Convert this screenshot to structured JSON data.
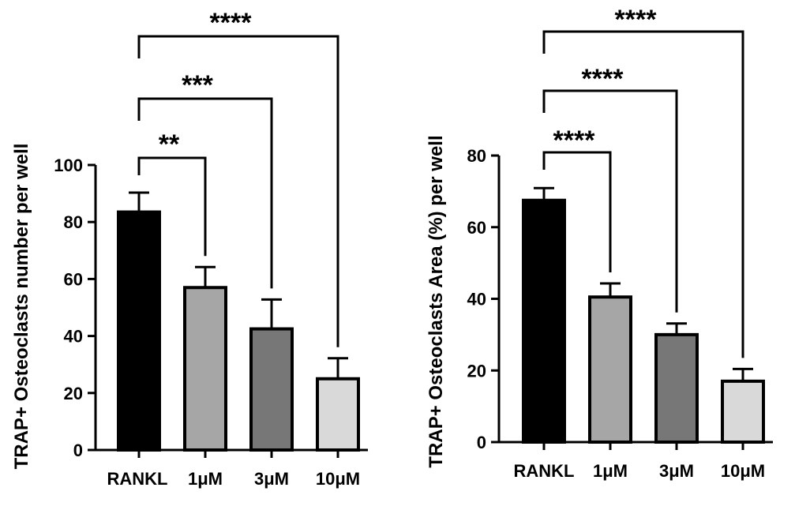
{
  "chart_data": [
    {
      "type": "bar",
      "categories": [
        "RANKL",
        "1μM",
        "3μM",
        "10μM"
      ],
      "values": [
        83.5,
        57,
        42.5,
        25
      ],
      "errors": [
        6.8,
        7.2,
        10.3,
        7.2
      ],
      "bar_colors": [
        "#000000",
        "#a6a6a6",
        "#777777",
        "#d9d9d9"
      ],
      "ylabel": "TRAP+ Osteoclasts number per well",
      "ylim": [
        0,
        100
      ],
      "yticks": [
        "0",
        "20",
        "40",
        "60",
        "80",
        "100"
      ],
      "significance": [
        {
          "from": "RANKL",
          "to": "1μM",
          "label": "**"
        },
        {
          "from": "RANKL",
          "to": "3μM",
          "label": "***"
        },
        {
          "from": "RANKL",
          "to": "10μM",
          "label": "****"
        }
      ]
    },
    {
      "type": "bar",
      "categories": [
        "RANKL",
        "1μM",
        "3μM",
        "10μM"
      ],
      "values": [
        67.5,
        40.5,
        30,
        17
      ],
      "errors": [
        3.4,
        3.8,
        3.1,
        3.4
      ],
      "bar_colors": [
        "#000000",
        "#a6a6a6",
        "#777777",
        "#d9d9d9"
      ],
      "ylabel": "TRAP+ Osteoclasts Area (%) per well",
      "ylim": [
        0,
        80
      ],
      "yticks": [
        "0",
        "20",
        "40",
        "60",
        "80"
      ],
      "significance": [
        {
          "from": "RANKL",
          "to": "1μM",
          "label": "****"
        },
        {
          "from": "RANKL",
          "to": "3μM",
          "label": "****"
        },
        {
          "from": "RANKL",
          "to": "10μM",
          "label": "****"
        }
      ]
    }
  ]
}
